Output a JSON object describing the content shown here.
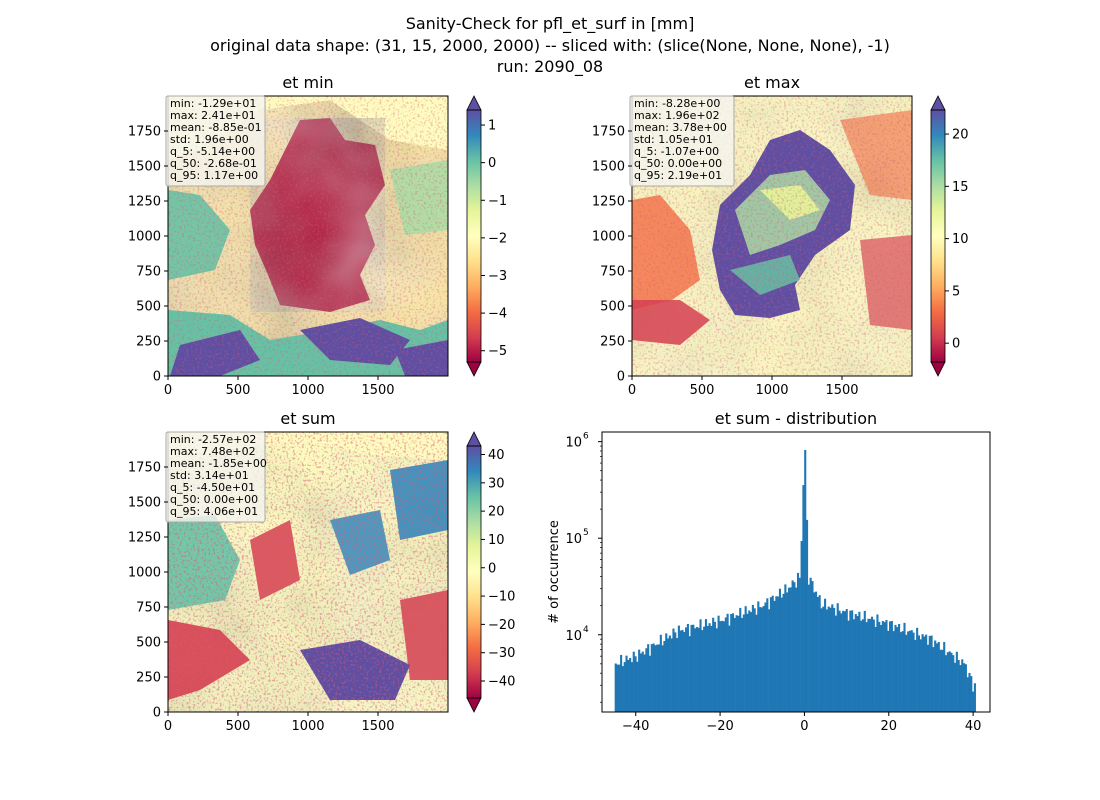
{
  "suptitle": [
    "Sanity-Check for pfl_et_surf in [mm]",
    "original data shape: (31, 15, 2000, 2000) -- sliced with: (slice(None, None, None), -1)",
    "run: 2090_08"
  ],
  "colors": {
    "hist_bar": "#1f77b4",
    "spectral": [
      "#9e0142",
      "#d53e4f",
      "#f46d43",
      "#fdae61",
      "#fee08b",
      "#ffffbf",
      "#e6f598",
      "#abdda4",
      "#66c2a5",
      "#3288bd",
      "#5e4fa2"
    ]
  },
  "chart_data": [
    {
      "type": "heatmap",
      "title": "et min",
      "x_ticks": [
        "0",
        "500",
        "1000",
        "1500"
      ],
      "y_ticks": [
        "0",
        "250",
        "500",
        "750",
        "1000",
        "1250",
        "1500",
        "1750"
      ],
      "xlim": [
        0,
        2000
      ],
      "ylim": [
        0,
        2000
      ],
      "colorbar": {
        "vmin": -5.3,
        "vmax": 1.4,
        "ticks": [
          "1",
          "0",
          "−1",
          "−2",
          "−3",
          "−4",
          "−5"
        ],
        "tick_values": [
          1,
          0,
          -1,
          -2,
          -3,
          -4,
          -5
        ],
        "colormap": "Spectral",
        "extend": "both"
      },
      "stats": [
        "min: -1.29e+01",
        "max: 2.41e+01",
        "mean: -8.85e-01",
        "std: 1.96e+00",
        "q_5: -5.14e+00",
        "q_50: -2.68e-01",
        "q_95: 1.17e+00"
      ]
    },
    {
      "type": "heatmap",
      "title": "et max",
      "x_ticks": [
        "0",
        "500",
        "1000",
        "1500"
      ],
      "y_ticks": [
        "0",
        "250",
        "500",
        "750",
        "1000",
        "1250",
        "1500",
        "1750"
      ],
      "xlim": [
        0,
        2000
      ],
      "ylim": [
        0,
        2000
      ],
      "colorbar": {
        "vmin": -1.8,
        "vmax": 22.3,
        "ticks": [
          "20",
          "15",
          "10",
          "5",
          "0"
        ],
        "tick_values": [
          20,
          15,
          10,
          5,
          0
        ],
        "colormap": "Spectral",
        "extend": "both"
      },
      "stats": [
        "min: -8.28e+00",
        "max: 1.96e+02",
        "mean: 3.78e+00",
        "std: 1.05e+01",
        "q_5: -1.07e+00",
        "q_50: 0.00e+00",
        "q_95: 2.19e+01"
      ]
    },
    {
      "type": "heatmap",
      "title": "et sum",
      "x_ticks": [
        "0",
        "500",
        "1000",
        "1500"
      ],
      "y_ticks": [
        "0",
        "250",
        "500",
        "750",
        "1000",
        "1250",
        "1500",
        "1750"
      ],
      "xlim": [
        0,
        2000
      ],
      "ylim": [
        0,
        2000
      ],
      "colorbar": {
        "vmin": -46,
        "vmax": 43,
        "ticks": [
          "40",
          "30",
          "20",
          "10",
          "0",
          "−10",
          "−20",
          "−30",
          "−40"
        ],
        "tick_values": [
          40,
          30,
          20,
          10,
          0,
          -10,
          -20,
          -30,
          -40
        ],
        "colormap": "Spectral",
        "extend": "both"
      },
      "stats": [
        "min: -2.57e+02",
        "max: 7.48e+02",
        "mean: -1.85e+00",
        "std: 3.14e+01",
        "q_5: -4.50e+01",
        "q_50: 0.00e+00",
        "q_95: 4.06e+01"
      ]
    },
    {
      "type": "bar",
      "title": "et sum - distribution",
      "ylabel": "# of occurrence",
      "yscale": "log",
      "xlim": [
        -48,
        44
      ],
      "ylim_log10": [
        3.2,
        6.1
      ],
      "x_ticks": [
        "−40",
        "−20",
        "0",
        "20",
        "40"
      ],
      "x_tick_values": [
        -40,
        -20,
        0,
        20,
        40
      ],
      "y_ticks": [
        "10",
        "10",
        "10"
      ],
      "y_tick_exponents": [
        "4",
        "5",
        "6"
      ],
      "y_tick_log_values": [
        4,
        5,
        6
      ],
      "bins": {
        "start": -45,
        "end": 40.6,
        "count": 200
      },
      "approx_counts": [
        {
          "x": -45,
          "y": 5000
        },
        {
          "x": -40,
          "y": 6000
        },
        {
          "x": -30,
          "y": 11000
        },
        {
          "x": -20,
          "y": 14000
        },
        {
          "x": -10,
          "y": 20000
        },
        {
          "x": -4,
          "y": 30000
        },
        {
          "x": -1,
          "y": 40000
        },
        {
          "x": 0,
          "y": 820000
        },
        {
          "x": 1,
          "y": 40000
        },
        {
          "x": 4,
          "y": 21000
        },
        {
          "x": 10,
          "y": 17000
        },
        {
          "x": 20,
          "y": 13000
        },
        {
          "x": 30,
          "y": 9000
        },
        {
          "x": 38,
          "y": 5000
        },
        {
          "x": 40,
          "y": 3000
        }
      ]
    }
  ]
}
